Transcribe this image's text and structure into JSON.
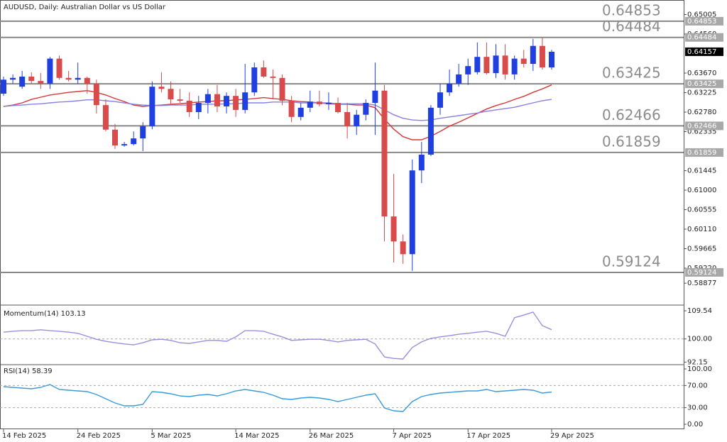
{
  "chart_data": [
    {
      "type": "candlestick",
      "title": "AUDUSD, Daily:  Australian Dollar vs US Dollar",
      "categories": [
        "14 Feb 2025",
        null,
        null,
        null,
        null,
        null,
        null,
        null,
        "24 Feb 2025",
        null,
        null,
        null,
        null,
        null,
        null,
        null,
        "5 Mar 2025",
        null,
        null,
        null,
        null,
        null,
        null,
        null,
        null,
        "14 Mar 2025",
        null,
        null,
        null,
        null,
        null,
        null,
        null,
        "26 Mar 2025",
        null,
        null,
        null,
        null,
        null,
        null,
        null,
        null,
        "7 Apr 2025",
        null,
        null,
        null,
        null,
        null,
        null,
        null,
        "17 Apr 2025",
        null,
        null,
        null,
        null,
        null,
        null,
        null,
        null,
        "29 Apr 2025"
      ],
      "open": [
        0.632,
        0.6352,
        0.6336,
        0.6359,
        0.6349,
        0.6343,
        0.64,
        0.6356,
        0.6352,
        0.6356,
        0.6343,
        0.6294,
        0.6238,
        0.6202,
        0.6205,
        0.6218,
        0.6246,
        0.6336,
        0.6331,
        0.6307,
        0.6304,
        0.6278,
        0.6299,
        0.6319,
        0.6291,
        0.6315,
        0.6283,
        0.6323,
        0.638,
        0.6359,
        0.6356,
        0.6304,
        0.6267,
        0.6288,
        0.6302,
        0.6296,
        0.6299,
        0.6278,
        0.6246,
        0.6272,
        0.6299,
        0.6327,
        0.604,
        0.5983,
        0.5954,
        0.6145,
        0.6181,
        0.6288,
        0.6323,
        0.6343,
        0.6364,
        0.6369,
        0.6404,
        0.6367,
        0.6407,
        0.6364,
        0.64,
        0.6388,
        0.6429,
        0.638
      ],
      "high": [
        0.6359,
        0.6364,
        0.6372,
        0.6369,
        0.6367,
        0.6404,
        0.6407,
        0.6372,
        0.6391,
        0.6359,
        0.6352,
        0.6307,
        0.6251,
        0.621,
        0.6234,
        0.6255,
        0.6348,
        0.6369,
        0.6348,
        0.6331,
        0.6323,
        0.6315,
        0.6331,
        0.634,
        0.6323,
        0.6331,
        0.6388,
        0.6391,
        0.6396,
        0.6375,
        0.6364,
        0.6315,
        0.6299,
        0.6327,
        0.6327,
        0.6323,
        0.6311,
        0.6299,
        0.6283,
        0.6307,
        0.6391,
        0.634,
        0.6137,
        0.5999,
        0.617,
        0.621,
        0.6294,
        0.6343,
        0.6375,
        0.6388,
        0.64,
        0.6437,
        0.6437,
        0.6433,
        0.6433,
        0.6407,
        0.642,
        0.6445,
        0.6448,
        0.642
      ],
      "low": [
        0.6315,
        0.6343,
        0.6331,
        0.6343,
        0.6331,
        0.6331,
        0.6352,
        0.6348,
        0.6343,
        0.632,
        0.6275,
        0.6234,
        0.6194,
        0.6199,
        0.6202,
        0.6189,
        0.6239,
        0.6323,
        0.6294,
        0.6299,
        0.6267,
        0.6262,
        0.6275,
        0.6278,
        0.6275,
        0.6267,
        0.6275,
        0.6315,
        0.6356,
        0.6307,
        0.6294,
        0.6255,
        0.6259,
        0.6278,
        0.6291,
        0.6283,
        0.6275,
        0.6218,
        0.6226,
        0.6259,
        0.6226,
        0.5983,
        0.5935,
        0.5932,
        0.5916,
        0.6116,
        0.6178,
        0.6272,
        0.6315,
        0.6336,
        0.634,
        0.6364,
        0.6364,
        0.6356,
        0.6352,
        0.6352,
        0.638,
        0.6372,
        0.6375,
        0.6375
      ],
      "close": [
        0.6352,
        0.6356,
        0.6359,
        0.6349,
        0.6343,
        0.64,
        0.6356,
        0.6352,
        0.6356,
        0.6343,
        0.6294,
        0.6238,
        0.6202,
        0.6205,
        0.6218,
        0.6246,
        0.6336,
        0.6331,
        0.6307,
        0.6304,
        0.6278,
        0.6299,
        0.6319,
        0.6291,
        0.6315,
        0.6283,
        0.6323,
        0.638,
        0.6359,
        0.6356,
        0.6304,
        0.6267,
        0.6288,
        0.6302,
        0.6296,
        0.6299,
        0.6278,
        0.6246,
        0.6272,
        0.6299,
        0.6327,
        0.604,
        0.5983,
        0.5954,
        0.6145,
        0.6181,
        0.6288,
        0.6323,
        0.6343,
        0.6364,
        0.6383,
        0.6404,
        0.6367,
        0.6407,
        0.6364,
        0.64,
        0.6388,
        0.6429,
        0.638,
        0.64157
      ],
      "up_color": "#1f3fe0",
      "down_color": "#d94a4a",
      "series": [
        {
          "color": "#d43838",
          "values": [
            0.6291,
            0.6294,
            0.6299,
            0.6307,
            0.6312,
            0.6317,
            0.632,
            0.6323,
            0.6325,
            0.6327,
            0.6323,
            0.6317,
            0.6309,
            0.6302,
            0.6294,
            0.6291,
            0.6293,
            0.6294,
            0.6296,
            0.6297,
            0.6299,
            0.6301,
            0.6302,
            0.6304,
            0.6304,
            0.6306,
            0.6307,
            0.6309,
            0.6311,
            0.6309,
            0.6307,
            0.6304,
            0.6302,
            0.6301,
            0.6299,
            0.6297,
            0.6296,
            0.6296,
            0.6294,
            0.6294,
            0.6288,
            0.6262,
            0.6239,
            0.6222,
            0.6215,
            0.6215,
            0.6223,
            0.6234,
            0.6246,
            0.6255,
            0.6265,
            0.6275,
            0.6285,
            0.6293,
            0.6299,
            0.6307,
            0.6314,
            0.6323,
            0.6331,
            0.634
          ]
        },
        {
          "color": "#8a80e0",
          "values": [
            0.6291,
            0.6293,
            0.6294,
            0.6296,
            0.6297,
            0.6299,
            0.6301,
            0.6302,
            0.6304,
            0.6306,
            0.6306,
            0.6304,
            0.6302,
            0.6299,
            0.6296,
            0.6294,
            0.6293,
            0.6293,
            0.6294,
            0.6294,
            0.6294,
            0.6296,
            0.6296,
            0.6296,
            0.6297,
            0.6297,
            0.6299,
            0.6299,
            0.6299,
            0.6301,
            0.6301,
            0.6301,
            0.6299,
            0.6299,
            0.6299,
            0.6299,
            0.6297,
            0.6297,
            0.6297,
            0.6297,
            0.6294,
            0.6283,
            0.6272,
            0.6264,
            0.626,
            0.6259,
            0.626,
            0.6264,
            0.6267,
            0.627,
            0.6273,
            0.6276,
            0.628,
            0.6283,
            0.6286,
            0.6289,
            0.6294,
            0.6299,
            0.6304,
            0.6307
          ]
        }
      ],
      "levels": [
        0.64853,
        0.64484,
        0.63425,
        0.62466,
        0.61859,
        0.59124
      ],
      "last_price": 0.64157,
      "ylim": [
        0.58411,
        0.65143
      ],
      "yticks": [
        {
          "value": 0.65005,
          "label": "0.65005"
        },
        {
          "value": 0.6456,
          "label": "0.64560"
        },
        {
          "value": 0.6367,
          "label": "0.63670"
        },
        {
          "value": 0.63225,
          "label": "0.63225"
        },
        {
          "value": 0.6278,
          "label": "0.62780"
        },
        {
          "value": 0.62335,
          "label": "0.62335"
        },
        {
          "value": 0.61445,
          "label": "0.61445"
        },
        {
          "value": 0.61,
          "label": "0.61000"
        },
        {
          "value": 0.60555,
          "label": "0.60555"
        },
        {
          "value": 0.6011,
          "label": "0.60110"
        },
        {
          "value": 0.59665,
          "label": "0.59665"
        },
        {
          "value": 0.5922,
          "label": "0.59220"
        },
        {
          "value": 0.58877,
          "label": "0.58877"
        }
      ]
    },
    {
      "type": "line",
      "title": "Momentum(14) 103.13",
      "series": [
        {
          "color": "#9a8fe0",
          "values": [
            102.3,
            102.6,
            102.8,
            102.8,
            103.1,
            102.8,
            102.6,
            102.3,
            101.9,
            100.9,
            99.9,
            99.2,
            98.7,
            98.3,
            98.0,
            98.7,
            99.7,
            99.9,
            99.5,
            98.7,
            98.5,
            99.0,
            99.5,
            99.5,
            99.2,
            100.7,
            102.8,
            102.8,
            102.6,
            101.6,
            100.7,
            99.5,
            99.7,
            99.9,
            99.9,
            99.5,
            99.0,
            99.5,
            99.7,
            99.9,
            98.3,
            93.9,
            93.4,
            93.2,
            97.1,
            99.0,
            100.2,
            100.7,
            101.1,
            101.6,
            101.9,
            102.3,
            102.6,
            101.9,
            100.9,
            107.2,
            108.1,
            109.1,
            104.5,
            103.13
          ]
        }
      ],
      "levels": [
        100
      ],
      "ylim": [
        92,
        111
      ],
      "yticks": [
        109.54,
        {
          "value": 100,
          "label": "100.00"
        },
        92.15
      ]
    },
    {
      "type": "line",
      "title": "RSI(14) 58.39",
      "series": [
        {
          "color": "#3a9ad9",
          "values": [
            67.9,
            66.7,
            65.4,
            64.1,
            66.7,
            71.8,
            62.8,
            61.5,
            60.3,
            59.0,
            53.8,
            46.2,
            38.5,
            33.3,
            33.3,
            35.9,
            59.0,
            57.7,
            55.1,
            51.3,
            50.0,
            52.6,
            53.8,
            51.3,
            55.1,
            60.3,
            62.8,
            60.3,
            57.7,
            52.6,
            46.2,
            44.9,
            47.4,
            48.7,
            47.4,
            44.9,
            41.0,
            44.9,
            48.7,
            52.6,
            55.1,
            29.5,
            24.4,
            23.1,
            41.0,
            50.0,
            53.8,
            56.4,
            57.7,
            59.0,
            60.3,
            60.3,
            62.8,
            59.0,
            60.3,
            61.5,
            62.8,
            61.5,
            56.4,
            58.39
          ]
        }
      ],
      "levels": [
        70,
        30
      ],
      "ylim": [
        0,
        100
      ],
      "yticks": [
        {
          "value": 100,
          "label": "100.00"
        },
        {
          "value": 70,
          "label": "70.00"
        },
        {
          "value": 30,
          "label": "30.00"
        },
        {
          "value": 0,
          "label": "0.00"
        }
      ]
    }
  ]
}
